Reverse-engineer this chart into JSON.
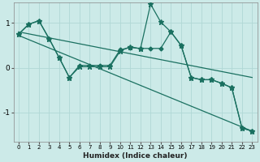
{
  "xlabel": "Humidex (Indice chaleur)",
  "bg_color": "#cceae8",
  "grid_color": "#b0d8d5",
  "line_color": "#1a7060",
  "xlim": [
    -0.5,
    23.5
  ],
  "ylim": [
    -1.65,
    1.45
  ],
  "yticks": [
    -1,
    0,
    1
  ],
  "xticks": [
    0,
    1,
    2,
    3,
    4,
    5,
    6,
    7,
    8,
    9,
    10,
    11,
    12,
    13,
    14,
    15,
    16,
    17,
    18,
    19,
    20,
    21,
    22,
    23
  ],
  "star_x": [
    0,
    1,
    2,
    3,
    4,
    5,
    6,
    7,
    8,
    9,
    10,
    11,
    12,
    13,
    14,
    15,
    16,
    17,
    18,
    19,
    20,
    21,
    22,
    23
  ],
  "star_y": [
    0.75,
    0.97,
    1.05,
    0.65,
    0.22,
    -0.22,
    0.02,
    0.02,
    0.02,
    0.02,
    0.37,
    0.47,
    0.42,
    1.42,
    1.02,
    0.8,
    0.5,
    -0.22,
    -0.27,
    -0.27,
    -0.35,
    -0.45,
    -1.35,
    -1.42
  ],
  "dia_x": [
    0,
    1,
    2,
    3,
    4,
    5,
    6,
    7,
    8,
    9,
    10,
    11,
    12,
    13,
    14,
    15,
    16,
    17,
    18,
    19,
    20,
    21,
    22,
    23
  ],
  "dia_y": [
    0.75,
    0.97,
    1.05,
    0.65,
    0.22,
    -0.22,
    0.05,
    0.05,
    0.05,
    0.05,
    0.4,
    0.45,
    0.43,
    0.43,
    0.43,
    0.8,
    0.5,
    -0.22,
    -0.27,
    -0.27,
    -0.35,
    -0.45,
    -1.35,
    -1.42
  ],
  "trend1_x": [
    0,
    23
  ],
  "trend1_y": [
    0.8,
    -0.22
  ],
  "trend2_x": [
    0,
    23
  ],
  "trend2_y": [
    0.72,
    -1.42
  ]
}
